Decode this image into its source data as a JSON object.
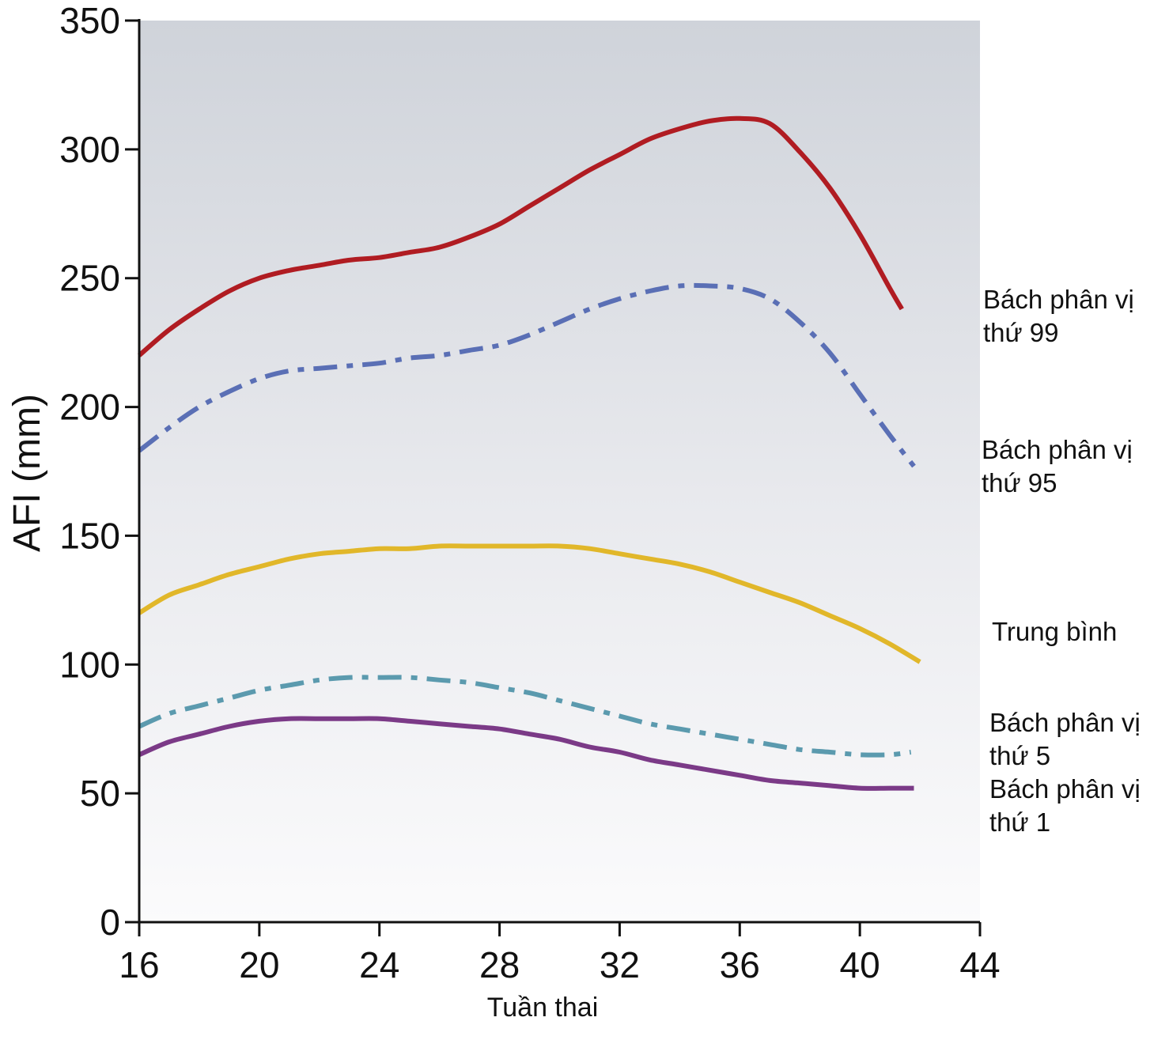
{
  "chart_data": {
    "type": "line",
    "xlabel": "Tuần thai",
    "ylabel": "AFI (mm)",
    "xlim": [
      16,
      44
    ],
    "ylim": [
      0,
      350
    ],
    "x_ticks": [
      16,
      20,
      24,
      28,
      32,
      36,
      40,
      44
    ],
    "y_ticks": [
      0,
      50,
      100,
      150,
      200,
      250,
      300,
      350
    ],
    "grid": false,
    "background": "gradient gray to white",
    "series": [
      {
        "name": "Bách phân vị thứ 99",
        "label_lines": [
          "Bách phân vị",
          "thứ 99"
        ],
        "color": "#b01c22",
        "style": "solid",
        "x": [
          16,
          17,
          18,
          19,
          20,
          21,
          22,
          23,
          24,
          25,
          26,
          27,
          28,
          29,
          30,
          31,
          32,
          33,
          34,
          35,
          36,
          37,
          38,
          39,
          40,
          41,
          41.4
        ],
        "y": [
          220,
          230,
          238,
          245,
          250,
          253,
          255,
          257,
          258,
          260,
          262,
          266,
          271,
          278,
          285,
          292,
          298,
          304,
          308,
          311,
          312,
          310,
          299,
          285,
          267,
          246,
          238
        ]
      },
      {
        "name": "Bách phân vị thứ 95",
        "label_lines": [
          "Bách phân vị",
          "thứ 95"
        ],
        "color": "#5a6fb5",
        "style": "dashdot",
        "x": [
          16,
          17,
          18,
          19,
          20,
          21,
          22,
          23,
          24,
          25,
          26,
          27,
          28,
          29,
          30,
          31,
          32,
          33,
          34,
          35,
          36,
          37,
          38,
          39,
          40,
          41,
          41.8
        ],
        "y": [
          183,
          192,
          200,
          206,
          211,
          214,
          215,
          216,
          217,
          219,
          220,
          222,
          224,
          228,
          233,
          238,
          242,
          245,
          247,
          247,
          246,
          242,
          233,
          221,
          205,
          189,
          177
        ]
      },
      {
        "name": "Trung bình",
        "label_lines": [
          "Trung bình"
        ],
        "color": "#e1b72a",
        "style": "solid",
        "x": [
          16,
          17,
          18,
          19,
          20,
          21,
          22,
          23,
          24,
          25,
          26,
          27,
          28,
          29,
          30,
          31,
          32,
          33,
          34,
          35,
          36,
          37,
          38,
          39,
          40,
          41,
          42
        ],
        "y": [
          120,
          127,
          131,
          135,
          138,
          141,
          143,
          144,
          145,
          145,
          146,
          146,
          146,
          146,
          146,
          145,
          143,
          141,
          139,
          136,
          132,
          128,
          124,
          119,
          114,
          108,
          101
        ]
      },
      {
        "name": "Bách phân vị thứ 5",
        "label_lines": [
          "Bách phân vị",
          "thứ 5"
        ],
        "color": "#5b9aae",
        "style": "dashdot",
        "x": [
          16,
          17,
          18,
          19,
          20,
          21,
          22,
          23,
          24,
          25,
          26,
          27,
          28,
          29,
          30,
          31,
          32,
          33,
          34,
          35,
          36,
          37,
          38,
          39,
          40,
          41,
          41.7
        ],
        "y": [
          76,
          81,
          84,
          87,
          90,
          92,
          94,
          95,
          95,
          95,
          94,
          93,
          91,
          89,
          86,
          83,
          80,
          77,
          75,
          73,
          71,
          69,
          67,
          66,
          65,
          65,
          66
        ]
      },
      {
        "name": "Bách phân vị thứ 1",
        "label_lines": [
          "Bách phân vị",
          "thứ 1"
        ],
        "color": "#7b3a87",
        "style": "solid",
        "x": [
          16,
          17,
          18,
          19,
          20,
          21,
          22,
          23,
          24,
          25,
          26,
          27,
          28,
          29,
          30,
          31,
          32,
          33,
          34,
          35,
          36,
          37,
          38,
          39,
          40,
          41,
          41.8
        ],
        "y": [
          65,
          70,
          73,
          76,
          78,
          79,
          79,
          79,
          79,
          78,
          77,
          76,
          75,
          73,
          71,
          68,
          66,
          63,
          61,
          59,
          57,
          55,
          54,
          53,
          52,
          52,
          52
        ]
      }
    ]
  }
}
